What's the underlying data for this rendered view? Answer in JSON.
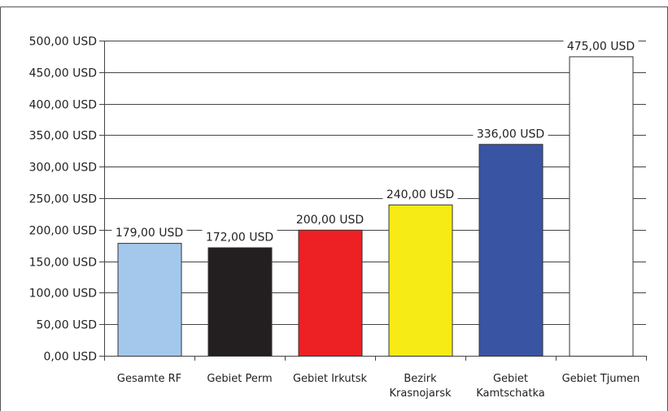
{
  "chart_data": {
    "type": "bar",
    "categories": [
      [
        "Gesamte RF"
      ],
      [
        "Gebiet Perm"
      ],
      [
        "Gebiet Irkutsk"
      ],
      [
        "Bezirk",
        "Krasnojarsk"
      ],
      [
        "Gebiet",
        "Kamtschatka"
      ],
      [
        "Gebiet Tjumen"
      ]
    ],
    "values": [
      179,
      172,
      200,
      240,
      336,
      475
    ],
    "value_labels": [
      "179,00 USD",
      "172,00 USD",
      "200,00 USD",
      "240,00 USD",
      "336,00 USD",
      "475,00 USD"
    ],
    "bar_colors": [
      "#a4c8ec",
      "#231f20",
      "#ed2024",
      "#f6eb14",
      "#3a54a4",
      "#ffffff"
    ],
    "y_ticks": [
      {
        "value": 0,
        "label": "0,00 USD"
      },
      {
        "value": 50,
        "label": "50,00 USD"
      },
      {
        "value": 100,
        "label": "100,00 USD"
      },
      {
        "value": 150,
        "label": "150,00 USD"
      },
      {
        "value": 200,
        "label": "200,00 USD"
      },
      {
        "value": 250,
        "label": "250,00 USD"
      },
      {
        "value": 300,
        "label": "300,00 USD"
      },
      {
        "value": 350,
        "label": "350,00 USD"
      },
      {
        "value": 400,
        "label": "400,00 USD"
      },
      {
        "value": 450,
        "label": "450,00 USD"
      },
      {
        "value": 500,
        "label": "500,00 USD"
      }
    ],
    "ylim": [
      0,
      500
    ],
    "grid": true,
    "title": "",
    "xlabel": "",
    "ylabel": ""
  }
}
